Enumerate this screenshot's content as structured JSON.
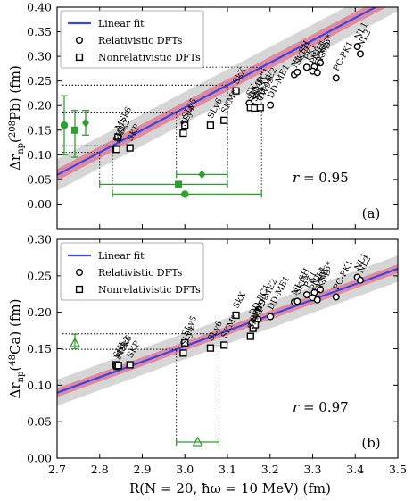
{
  "chart_data": [
    {
      "type": "scatter",
      "ylabel": "Δr_np(208Pb) (fm)",
      "ylabel_main": "Δr",
      "ylabel_sub": "np",
      "ylabel_paren": "(",
      "ylabel_sup": "208",
      "ylabel_tail": "Pb) (fm)",
      "xlim": [
        2.7,
        3.5
      ],
      "ylim": [
        -0.05,
        0.4
      ],
      "y_ticks": [
        0.0,
        0.05,
        0.1,
        0.15,
        0.2,
        0.25,
        0.3,
        0.35,
        0.4
      ],
      "y_tick_labels": [
        "0.00",
        "0.05",
        "0.10",
        "0.15",
        "0.20",
        "0.25",
        "0.30",
        "0.35",
        "0.40"
      ],
      "panel_label": "(a)",
      "r_label": "r",
      "r_value": "=  0.95",
      "fit": {
        "slope": 0.456,
        "intercept": -1.172,
        "band_inner": 0.012,
        "band_outer": 0.032
      },
      "legend": {
        "placement": "top-left",
        "fit": "Linear fit",
        "rel": "Relativistic DFTs",
        "nonrel": "Nonrelativistic DFTs"
      },
      "series": [
        {
          "name": "Relativistic DFTs",
          "points": [
            {
              "label": "NL1",
              "x": 3.405,
              "y": 0.32
            },
            {
              "label": "NL2",
              "x": 3.412,
              "y": 0.305
            },
            {
              "label": "PC-PK1",
              "x": 3.355,
              "y": 0.256
            },
            {
              "label": "NL3*",
              "x": 3.318,
              "y": 0.287
            },
            {
              "label": "NL3",
              "x": 3.304,
              "y": 0.279
            },
            {
              "label": "PC-F1",
              "x": 3.3,
              "y": 0.27
            },
            {
              "label": "PK1",
              "x": 3.286,
              "y": 0.278
            },
            {
              "label": "FKDD",
              "x": 3.311,
              "y": 0.267
            },
            {
              "label": "NL-SH",
              "x": 3.257,
              "y": 0.263
            },
            {
              "label": "SKI5",
              "x": 3.264,
              "y": 0.268
            },
            {
              "label": "DD-PC1",
              "x": 3.158,
              "y": 0.199
            },
            {
              "label": "SV",
              "x": 3.151,
              "y": 0.205
            },
            {
              "label": "DD-ME2",
              "x": 3.172,
              "y": 0.195
            },
            {
              "label": "DD-ME1",
              "x": 3.201,
              "y": 0.201
            }
          ]
        },
        {
          "name": "Nonrelativistic DFTs",
          "points": [
            {
              "label": "SIII",
              "x": 2.838,
              "y": 0.112
            },
            {
              "label": "MSk3",
              "x": 2.84,
              "y": 0.111
            },
            {
              "label": "MSk6",
              "x": 2.843,
              "y": 0.136
            },
            {
              "label": "SKP",
              "x": 2.871,
              "y": 0.114
            },
            {
              "label": "SLy4",
              "x": 2.996,
              "y": 0.144
            },
            {
              "label": "SLy5",
              "x": 3.0,
              "y": 0.16
            },
            {
              "label": "SLy6",
              "x": 3.06,
              "y": 0.16
            },
            {
              "label": "SKM*",
              "x": 3.092,
              "y": 0.17
            },
            {
              "label": "SkX",
              "x": 3.12,
              "y": 0.23
            },
            {
              "label": "SkMP",
              "x": 3.154,
              "y": 0.196
            },
            {
              "label": "SkI",
              "x": 3.164,
              "y": 0.195
            },
            {
              "label": "TW99",
              "x": 3.177,
              "y": 0.196
            }
          ]
        }
      ],
      "estimates": [
        {
          "marker": "circle",
          "x": 3.0,
          "x_err": [
            2.83,
            3.18
          ],
          "y": 0.02,
          "left_y": 0.16,
          "left_y_err": [
            0.1,
            0.22
          ]
        },
        {
          "marker": "square",
          "x": 2.985,
          "x_err": [
            2.8,
            3.1
          ],
          "y": 0.04,
          "left_y": 0.15,
          "left_y_err": [
            0.095,
            0.19
          ]
        },
        {
          "marker": "diamond",
          "x": 3.04,
          "x_err": [
            2.98,
            3.1
          ],
          "y": 0.06,
          "left_y": 0.165,
          "left_y_err": [
            0.14,
            0.19
          ]
        }
      ]
    },
    {
      "type": "scatter",
      "xlabel": "R(N = 20, ħω = 10 MeV) (fm)",
      "ylabel": "Δr_np(48Ca) (fm)",
      "ylabel_main": "Δr",
      "ylabel_sub": "np",
      "ylabel_paren": "(",
      "ylabel_sup": "48",
      "ylabel_tail": "Ca) (fm)",
      "xlim": [
        2.7,
        3.5
      ],
      "ylim": [
        0.0,
        0.3
      ],
      "x_ticks": [
        2.7,
        2.8,
        2.9,
        3.0,
        3.1,
        3.2,
        3.3,
        3.4,
        3.5
      ],
      "x_tick_labels": [
        "2.7",
        "2.8",
        "2.9",
        "3.0",
        "3.1",
        "3.2",
        "3.3",
        "3.4",
        "3.5"
      ],
      "y_ticks": [
        0.0,
        0.05,
        0.1,
        0.15,
        0.2,
        0.25,
        0.3
      ],
      "y_tick_labels": [
        "0.00",
        "0.05",
        "0.10",
        "0.15",
        "0.20",
        "0.25",
        "0.30"
      ],
      "panel_label": "(b)",
      "r_label": "r",
      "r_value": "=  0.97",
      "fit": {
        "slope": 0.2125,
        "intercept": -0.484,
        "band_inner": 0.006,
        "band_outer": 0.018
      },
      "legend": {
        "placement": "top-left",
        "fit": "Linear fit",
        "rel": "Relativistic DFTs",
        "nonrel": "Nonrelativistic DFTs"
      },
      "series": [
        {
          "name": "Relativistic DFTs",
          "points": [
            {
              "label": "NL1",
              "x": 3.405,
              "y": 0.248
            },
            {
              "label": "NL2",
              "x": 3.412,
              "y": 0.244
            },
            {
              "label": "PC-PK1",
              "x": 3.355,
              "y": 0.221
            },
            {
              "label": "NL3*",
              "x": 3.318,
              "y": 0.231
            },
            {
              "label": "NL3",
              "x": 3.304,
              "y": 0.227
            },
            {
              "label": "PC-F1",
              "x": 3.3,
              "y": 0.22
            },
            {
              "label": "PK1",
              "x": 3.286,
              "y": 0.224
            },
            {
              "label": "FKDD",
              "x": 3.311,
              "y": 0.217
            },
            {
              "label": "NL-SH",
              "x": 3.257,
              "y": 0.214
            },
            {
              "label": "SKI5",
              "x": 3.264,
              "y": 0.215
            },
            {
              "label": "DD-PC1",
              "x": 3.158,
              "y": 0.186
            },
            {
              "label": "DD-ME2",
              "x": 3.172,
              "y": 0.19
            },
            {
              "label": "DD-ME1",
              "x": 3.201,
              "y": 0.194
            }
          ]
        },
        {
          "name": "Nonrelativistic DFTs",
          "points": [
            {
              "label": "SIII",
              "x": 2.838,
              "y": 0.128
            },
            {
              "label": "MSk3",
              "x": 2.841,
              "y": 0.126
            },
            {
              "label": "MSk6",
              "x": 2.844,
              "y": 0.127
            },
            {
              "label": "SKP",
              "x": 2.871,
              "y": 0.128
            },
            {
              "label": "SLy4",
              "x": 2.996,
              "y": 0.144
            },
            {
              "label": "SLy5",
              "x": 3.0,
              "y": 0.158
            },
            {
              "label": "SLy6",
              "x": 3.06,
              "y": 0.151
            },
            {
              "label": "SKM*",
              "x": 3.092,
              "y": 0.155
            },
            {
              "label": "SkX",
              "x": 3.12,
              "y": 0.196
            },
            {
              "label": "SkMP",
              "x": 3.154,
              "y": 0.167
            },
            {
              "label": "SkI",
              "x": 3.16,
              "y": 0.178
            },
            {
              "label": "TW99",
              "x": 3.165,
              "y": 0.183
            }
          ]
        }
      ],
      "estimates": [
        {
          "marker": "triangle",
          "x": 3.03,
          "x_err": [
            2.98,
            3.08
          ],
          "y": 0.022,
          "left_y": 0.158,
          "left_y_err": [
            0.15,
            0.17
          ]
        }
      ]
    }
  ],
  "colors": {
    "fit_line": "#3a46e8",
    "band_inner": "#e08a9e",
    "band_outer": "#d6d6d6",
    "estimate": "#2ca02c"
  }
}
